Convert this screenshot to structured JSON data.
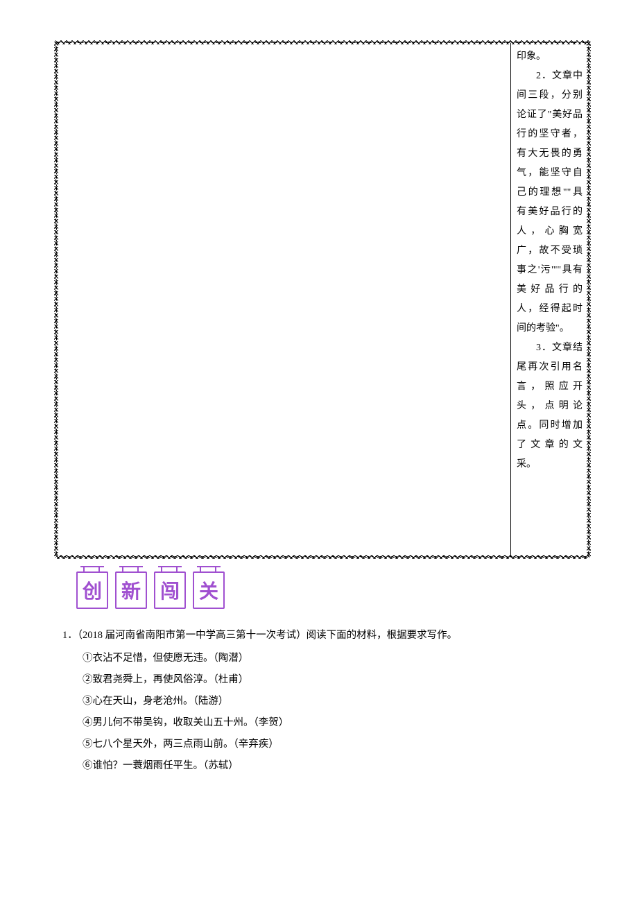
{
  "wavy_box": {
    "right_col_paragraphs": [
      {
        "text": "印象。",
        "indent": false
      },
      {
        "text": "2．文章中间三段，分别论证了\"美好品行的坚守者，有大无畏的勇气，能坚守自己的理想\"\"具有美好品行的人，心胸宽广，故不受琐事之'污'\"\"具有美好品行的人，经得起时间的考验\"。",
        "indent": true
      },
      {
        "text": "3．文章结尾再次引用名言，照应开头，点明论点。同时增加了文章的文采。",
        "indent": true
      }
    ]
  },
  "banner": {
    "chars": [
      "创",
      "新",
      "闯",
      "关"
    ],
    "border_color": "#a050d0",
    "text_color": "#a050d0"
  },
  "question": {
    "number": "1．",
    "source": "（2018 届河南省南阳市第一中学高三第十一次考试）",
    "stem_tail": "阅读下面的材料，根据要求写作。",
    "quotes": [
      {
        "label": "①",
        "text": "衣沾不足惜，但使愿无违。（陶潜）"
      },
      {
        "label": "②",
        "text": "致君尧舜上，再使风俗淳。（杜甫）"
      },
      {
        "label": "③",
        "text": "心在天山，身老沧州。（陆游）"
      },
      {
        "label": "④",
        "text": "男儿何不带吴钩，收取关山五十州。（李贺）"
      },
      {
        "label": "⑤",
        "text": "七八个星天外，两三点雨山前。（辛弃疾）"
      },
      {
        "label": "⑥",
        "text": "谁怕？一蓑烟雨任平生。（苏轼）"
      }
    ]
  }
}
